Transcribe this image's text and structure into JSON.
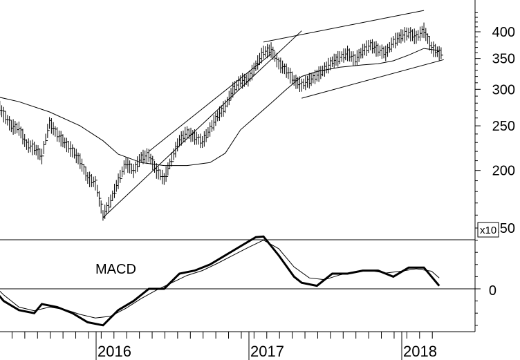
{
  "chart_data": [
    {
      "type": "ohlc",
      "scale": "log",
      "ylim": [
        150,
        450
      ],
      "grid": false,
      "y_ticks": [
        400,
        350,
        300,
        250,
        200,
        150
      ],
      "y_tick_labels": [
        "400",
        "350",
        "300",
        "250",
        "200",
        "150"
      ],
      "x_ticks": [
        "2016",
        "2017",
        "2018"
      ],
      "x_tick_dates": [
        2016.0,
        2017.0,
        2018.0
      ],
      "price_close": [
        [
          2015.2,
          290
        ],
        [
          2015.25,
          283
        ],
        [
          2015.3,
          265
        ],
        [
          2015.35,
          250
        ],
        [
          2015.4,
          247
        ],
        [
          2015.45,
          228
        ],
        [
          2015.5,
          224
        ],
        [
          2015.55,
          215
        ],
        [
          2015.6,
          254
        ],
        [
          2015.65,
          240
        ],
        [
          2015.7,
          230
        ],
        [
          2015.75,
          221
        ],
        [
          2015.8,
          210
        ],
        [
          2015.85,
          193
        ],
        [
          2015.9,
          188
        ],
        [
          2015.95,
          160
        ],
        [
          2016.0,
          172
        ],
        [
          2016.05,
          190
        ],
        [
          2016.1,
          208
        ],
        [
          2016.15,
          200
        ],
        [
          2016.2,
          214
        ],
        [
          2016.25,
          216
        ],
        [
          2016.3,
          200
        ],
        [
          2016.35,
          192
        ],
        [
          2016.4,
          212
        ],
        [
          2016.45,
          233
        ],
        [
          2016.5,
          242
        ],
        [
          2016.55,
          237
        ],
        [
          2016.6,
          231
        ],
        [
          2016.65,
          246
        ],
        [
          2016.7,
          263
        ],
        [
          2016.75,
          276
        ],
        [
          2016.8,
          300
        ],
        [
          2016.85,
          313
        ],
        [
          2016.9,
          316
        ],
        [
          2016.95,
          338
        ],
        [
          2017.0,
          362
        ],
        [
          2017.05,
          366
        ],
        [
          2017.1,
          342
        ],
        [
          2017.15,
          330
        ],
        [
          2017.2,
          314
        ],
        [
          2017.25,
          307
        ],
        [
          2017.3,
          314
        ],
        [
          2017.35,
          322
        ],
        [
          2017.4,
          332
        ],
        [
          2017.45,
          345
        ],
        [
          2017.5,
          352
        ],
        [
          2017.55,
          360
        ],
        [
          2017.6,
          348
        ],
        [
          2017.65,
          364
        ],
        [
          2017.7,
          375
        ],
        [
          2017.75,
          366
        ],
        [
          2017.8,
          360
        ],
        [
          2017.85,
          381
        ],
        [
          2017.9,
          392
        ],
        [
          2017.95,
          398
        ],
        [
          2018.0,
          390
        ],
        [
          2018.05,
          404
        ],
        [
          2018.1,
          370
        ],
        [
          2018.15,
          360
        ]
      ],
      "moving_average": [
        [
          2015.2,
          292
        ],
        [
          2015.4,
          282
        ],
        [
          2015.6,
          268
        ],
        [
          2015.8,
          250
        ],
        [
          2015.95,
          232
        ],
        [
          2016.05,
          217
        ],
        [
          2016.2,
          208
        ],
        [
          2016.35,
          205
        ],
        [
          2016.5,
          205
        ],
        [
          2016.65,
          208
        ],
        [
          2016.75,
          218
        ],
        [
          2016.85,
          245
        ],
        [
          2016.95,
          262
        ],
        [
          2017.05,
          280
        ],
        [
          2017.15,
          300
        ],
        [
          2017.25,
          320
        ],
        [
          2017.35,
          328
        ],
        [
          2017.5,
          335
        ],
        [
          2017.65,
          339
        ],
        [
          2017.75,
          341
        ],
        [
          2017.85,
          346
        ],
        [
          2017.95,
          356
        ],
        [
          2018.05,
          368
        ],
        [
          2018.15,
          364
        ]
      ],
      "trendlines": [
        {
          "start": [
            2015.95,
            158
          ],
          "end": [
            2017.25,
            402
          ]
        },
        {
          "start": [
            2016.25,
            220
          ],
          "end": [
            2017.05,
            358
          ]
        },
        {
          "start": [
            2017.0,
            380
          ],
          "end": [
            2018.05,
            445
          ]
        },
        {
          "start": [
            2017.25,
            287
          ],
          "end": [
            2018.18,
            348
          ]
        }
      ]
    },
    {
      "type": "line",
      "title": "MACD",
      "multiplier_label": "x10",
      "y_ticks": [
        0
      ],
      "y_tick_labels": [
        "0"
      ],
      "zero_line": true,
      "series": [
        {
          "values": [
            [
              2015.2,
              1
            ],
            [
              2015.3,
              -2
            ],
            [
              2015.4,
              -3.5
            ],
            [
              2015.5,
              -4
            ],
            [
              2015.55,
              -2.5
            ],
            [
              2015.65,
              -3
            ],
            [
              2015.75,
              -4
            ],
            [
              2015.85,
              -5.5
            ],
            [
              2015.95,
              -6
            ],
            [
              2016.05,
              -3.5
            ],
            [
              2016.15,
              -2
            ],
            [
              2016.25,
              0
            ],
            [
              2016.35,
              0
            ],
            [
              2016.45,
              2.5
            ],
            [
              2016.55,
              3
            ],
            [
              2016.65,
              4
            ],
            [
              2016.75,
              5.5
            ],
            [
              2016.85,
              7
            ],
            [
              2016.95,
              8.5
            ],
            [
              2017.0,
              8.6
            ],
            [
              2017.1,
              5.5
            ],
            [
              2017.2,
              2
            ],
            [
              2017.25,
              1
            ],
            [
              2017.35,
              0.5
            ],
            [
              2017.45,
              2.5
            ],
            [
              2017.55,
              2.5
            ],
            [
              2017.65,
              3
            ],
            [
              2017.75,
              3
            ],
            [
              2017.85,
              2
            ],
            [
              2017.95,
              3.5
            ],
            [
              2018.05,
              3.5
            ],
            [
              2018.15,
              0.5
            ]
          ]
        },
        {
          "values": [
            [
              2015.2,
              1.5
            ],
            [
              2015.3,
              -1
            ],
            [
              2015.4,
              -3
            ],
            [
              2015.5,
              -3.6
            ],
            [
              2015.6,
              -3
            ],
            [
              2015.7,
              -3.4
            ],
            [
              2015.8,
              -4.2
            ],
            [
              2015.9,
              -4.8
            ],
            [
              2016.0,
              -4.5
            ],
            [
              2016.1,
              -3.2
            ],
            [
              2016.2,
              -1.6
            ],
            [
              2016.3,
              -0.2
            ],
            [
              2016.4,
              1
            ],
            [
              2016.5,
              2.2
            ],
            [
              2016.6,
              3
            ],
            [
              2016.7,
              4.2
            ],
            [
              2016.8,
              5.5
            ],
            [
              2016.9,
              6.8
            ],
            [
              2017.0,
              8
            ],
            [
              2017.1,
              6.6
            ],
            [
              2017.2,
              3.6
            ],
            [
              2017.3,
              1.8
            ],
            [
              2017.4,
              1.5
            ],
            [
              2017.5,
              2.3
            ],
            [
              2017.6,
              2.8
            ],
            [
              2017.7,
              3
            ],
            [
              2017.8,
              2.6
            ],
            [
              2017.9,
              2.9
            ],
            [
              2018.0,
              3.3
            ],
            [
              2018.1,
              2.9
            ],
            [
              2018.15,
              1.8
            ]
          ]
        }
      ]
    }
  ]
}
